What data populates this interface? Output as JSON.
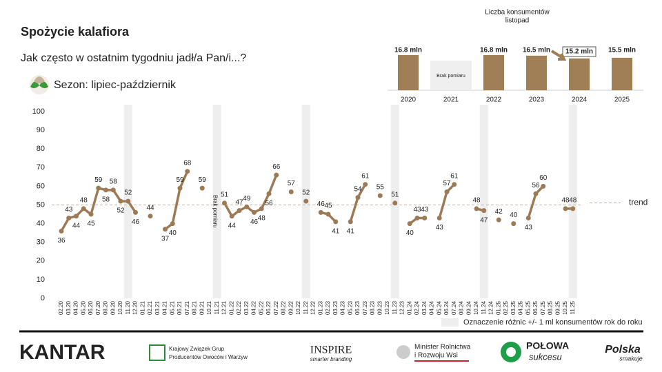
{
  "header": {
    "title": "Spożycie kalafiora",
    "subtitle": "Jak często w ostatnim tygodniu jadł/a Pan/i...?",
    "season": "Sezon: lipiec-październik"
  },
  "chart_data": [
    {
      "type": "line",
      "color": "#9c7a55",
      "categories": [
        "02.20",
        "03.20",
        "04.20",
        "05.20",
        "06.20",
        "07.20",
        "08.20",
        "09.20",
        "10.20",
        "11.20",
        "12.20",
        "01.21",
        "02.21",
        "03.21",
        "04.21",
        "05.21",
        "06.21",
        "07.21",
        "08.21",
        "09.21",
        "10.21",
        "11.21",
        "12.21",
        "01.22",
        "02.22",
        "03.22",
        "04.22",
        "05.22",
        "06.22",
        "07.22",
        "08.22",
        "09.22",
        "10.22",
        "11.22",
        "12.22",
        "01.23",
        "02.23",
        "03.23",
        "04.23",
        "05.23",
        "06.23",
        "07.23",
        "08.23",
        "09.23",
        "10.23",
        "11.23",
        "12.23",
        "01.24",
        "02.24",
        "03.24",
        "04.24",
        "05.24",
        "06.24",
        "07.24",
        "08.24",
        "09.24",
        "10.24",
        "11.24",
        "12.24",
        "01.25",
        "02.25",
        "03.25",
        "04.25",
        "05.25",
        "06.25",
        "07.25",
        "08.25",
        "09.25",
        "10.25",
        "11.25"
      ],
      "values": [
        36,
        43,
        44,
        48,
        45,
        59,
        58,
        58,
        52,
        52,
        46,
        null,
        44,
        null,
        37,
        40,
        59,
        68,
        null,
        59,
        null,
        null,
        51,
        44,
        47,
        49,
        46,
        48,
        56,
        66,
        null,
        57,
        null,
        52,
        null,
        46,
        45,
        41,
        null,
        41,
        54,
        61,
        null,
        55,
        null,
        51,
        null,
        40,
        43,
        43,
        null,
        43,
        57,
        61,
        null,
        null,
        48,
        47,
        null,
        42,
        null,
        40,
        null,
        43,
        56,
        60,
        null,
        null,
        48,
        48
      ],
      "ylim": [
        0,
        100
      ],
      "yticks": [
        0,
        10,
        20,
        30,
        40,
        50,
        60,
        70,
        80,
        90,
        100
      ],
      "trend": {
        "label": "trend",
        "value": 50,
        "color": "#c9ae99"
      },
      "annotation": "Brak pomiaru",
      "band_legend": "Oznaczenie różnic +/- 1 ml konsumentów rok do roku",
      "band_color": "#eeeeee"
    },
    {
      "type": "bar",
      "title": "Liczba konsumentów",
      "subtitle": "listopad",
      "color": "#a07e56",
      "categories": [
        "2020",
        "2021",
        "2022",
        "2023",
        "2024",
        "2025"
      ],
      "values": [
        16.8,
        null,
        16.8,
        16.5,
        15.2,
        15.5
      ],
      "value_labels": [
        "16.8 mln",
        null,
        "16.8 mln",
        "16.5 mln",
        "15.2 mln",
        "15.5 mln"
      ],
      "missing_label": "Brak pomiaru"
    }
  ],
  "footer": {
    "logos": [
      "KANTAR",
      "Krajowy Związek Grup",
      "Producentów Owoców i Warzyw",
      "INSPIRE",
      "smarter branding",
      "Minister Rolnictwa",
      "i Rozwoju Wsi",
      "POŁOWA",
      "sukcesu",
      "Polska",
      "smakuje"
    ]
  }
}
